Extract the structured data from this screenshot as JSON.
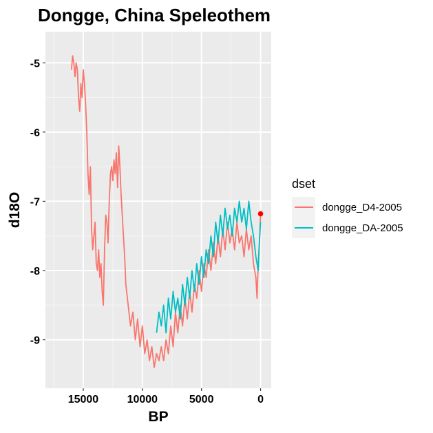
{
  "chart_data": {
    "type": "line",
    "title": "Dongge, China Speleothem",
    "xlabel": "BP",
    "ylabel": "d18O",
    "x_reversed": true,
    "xlim": [
      18200,
      -900
    ],
    "ylim": [
      -9.7,
      -4.55
    ],
    "x_ticks": [
      15000,
      10000,
      5000,
      0
    ],
    "x_tick_labels": [
      "15000",
      "10000",
      "5000",
      "0"
    ],
    "y_ticks": [
      -9,
      -8,
      -7,
      -6,
      -5
    ],
    "y_tick_labels": [
      "-9",
      "-8",
      "-7",
      "-6",
      "-5"
    ],
    "grid": true,
    "legend": {
      "title": "dset",
      "position": "right",
      "entries": [
        "dongge_D4-2005",
        "dongge_DA-2005"
      ]
    },
    "series": [
      {
        "name": "dongge_D4-2005",
        "color": "#F8766D",
        "x": [
          16000,
          15900,
          15800,
          15700,
          15600,
          15500,
          15400,
          15300,
          15200,
          15100,
          15000,
          14900,
          14800,
          14700,
          14600,
          14500,
          14400,
          14300,
          14200,
          14100,
          14000,
          13900,
          13800,
          13700,
          13600,
          13500,
          13400,
          13300,
          13200,
          13100,
          13000,
          12900,
          12800,
          12700,
          12600,
          12500,
          12400,
          12300,
          12200,
          12100,
          12000,
          11900,
          11800,
          11700,
          11600,
          11500,
          11400,
          11200,
          11000,
          10800,
          10600,
          10400,
          10200,
          10000,
          9800,
          9600,
          9400,
          9200,
          9000,
          8800,
          8600,
          8400,
          8200,
          8000,
          7800,
          7600,
          7400,
          7200,
          7000,
          6800,
          6600,
          6400,
          6200,
          6000,
          5800,
          5600,
          5400,
          5200,
          5000,
          4800,
          4600,
          4400,
          4200,
          4000,
          3800,
          3600,
          3400,
          3200,
          3000,
          2800,
          2600,
          2400,
          2200,
          2000,
          1800,
          1600,
          1400,
          1200,
          1000,
          800,
          600,
          400,
          300,
          200,
          100,
          0
        ],
        "y": [
          -5.1,
          -4.9,
          -5.0,
          -5.2,
          -5.0,
          -5.1,
          -5.5,
          -5.7,
          -5.3,
          -5.5,
          -5.1,
          -5.3,
          -5.6,
          -6.0,
          -6.6,
          -6.9,
          -6.5,
          -7.4,
          -7.7,
          -7.5,
          -7.3,
          -7.9,
          -8.0,
          -7.7,
          -8.1,
          -7.9,
          -8.3,
          -8.5,
          -7.7,
          -7.2,
          -7.3,
          -7.6,
          -7.0,
          -6.6,
          -6.5,
          -6.7,
          -6.4,
          -6.6,
          -6.3,
          -6.8,
          -6.2,
          -6.5,
          -6.9,
          -7.2,
          -7.5,
          -7.8,
          -8.2,
          -8.5,
          -8.8,
          -8.6,
          -9.0,
          -8.7,
          -9.1,
          -8.8,
          -9.2,
          -9.0,
          -9.3,
          -9.1,
          -9.4,
          -9.2,
          -9.3,
          -9.1,
          -9.3,
          -9.0,
          -9.2,
          -8.8,
          -9.1,
          -8.6,
          -8.9,
          -8.5,
          -8.8,
          -8.4,
          -8.7,
          -8.3,
          -8.6,
          -8.2,
          -8.4,
          -8.0,
          -8.3,
          -7.9,
          -8.1,
          -7.7,
          -8.0,
          -7.6,
          -7.9,
          -7.5,
          -7.8,
          -7.4,
          -7.7,
          -7.3,
          -7.6,
          -7.4,
          -7.7,
          -7.3,
          -7.6,
          -7.5,
          -7.8,
          -7.4,
          -7.7,
          -7.5,
          -7.9,
          -8.1,
          -8.4,
          -7.9,
          -7.6,
          -7.2
        ]
      },
      {
        "name": "dongge_DA-2005",
        "color": "#00BFC4",
        "x": [
          8800,
          8600,
          8400,
          8200,
          8000,
          7800,
          7600,
          7400,
          7200,
          7000,
          6800,
          6600,
          6400,
          6200,
          6000,
          5800,
          5600,
          5400,
          5200,
          5000,
          4800,
          4600,
          4400,
          4200,
          4000,
          3800,
          3600,
          3400,
          3200,
          3000,
          2800,
          2600,
          2400,
          2200,
          2000,
          1800,
          1600,
          1400,
          1200,
          1000,
          800,
          600,
          400,
          200,
          100,
          0
        ],
        "y": [
          -8.9,
          -8.6,
          -8.8,
          -8.5,
          -8.9,
          -8.4,
          -8.7,
          -8.3,
          -8.6,
          -8.4,
          -8.7,
          -8.2,
          -8.5,
          -8.1,
          -8.4,
          -8.0,
          -8.3,
          -7.9,
          -8.2,
          -7.8,
          -8.1,
          -7.7,
          -7.9,
          -7.5,
          -7.8,
          -7.3,
          -7.6,
          -7.2,
          -7.5,
          -7.1,
          -7.4,
          -7.2,
          -7.5,
          -7.1,
          -7.3,
          -7.0,
          -7.3,
          -7.1,
          -7.4,
          -7.0,
          -7.3,
          -7.5,
          -7.8,
          -8.0,
          -7.6,
          -7.3
        ]
      }
    ],
    "point": {
      "x": 0,
      "y": -7.18,
      "color": "#FF0000"
    }
  }
}
